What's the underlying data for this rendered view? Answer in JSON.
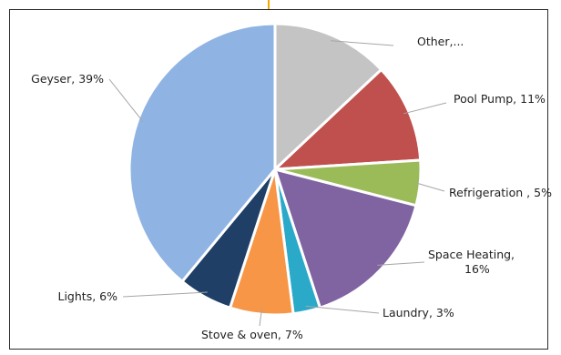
{
  "chart_data": {
    "type": "pie",
    "title": "",
    "slices": [
      {
        "label": "Other,...",
        "value": 13,
        "color": "#c4c4c4",
        "text_lines": [
          "Other,..."
        ]
      },
      {
        "label": "Pool Pump, 11%",
        "value": 11,
        "color": "#c0504d",
        "text_lines": [
          "Pool Pump, 11%"
        ]
      },
      {
        "label": "Refrigeration , 5%",
        "value": 5,
        "color": "#9bbb59",
        "text_lines": [
          "Refrigeration , 5%"
        ]
      },
      {
        "label": "Space Heating, 16%",
        "value": 16,
        "color": "#8064a2",
        "text_lines": [
          "Space Heating,",
          "16%"
        ]
      },
      {
        "label": "Laundry, 3%",
        "value": 3,
        "color": "#2aa9c9",
        "text_lines": [
          "Laundry, 3%"
        ]
      },
      {
        "label": "Stove & oven, 7%",
        "value": 7,
        "color": "#f79646",
        "text_lines": [
          "Stove & oven, 7%"
        ]
      },
      {
        "label": "Lights, 6%",
        "value": 6,
        "color": "#1f3f66",
        "text_lines": [
          "Lights, 6%"
        ]
      },
      {
        "label": "Geyser, 39%",
        "value": 39,
        "color": "#8fb4e3",
        "text_lines": [
          "Geyser, 39%"
        ]
      }
    ],
    "legend": "none",
    "data_labels": "outside-with-leader-lines"
  }
}
